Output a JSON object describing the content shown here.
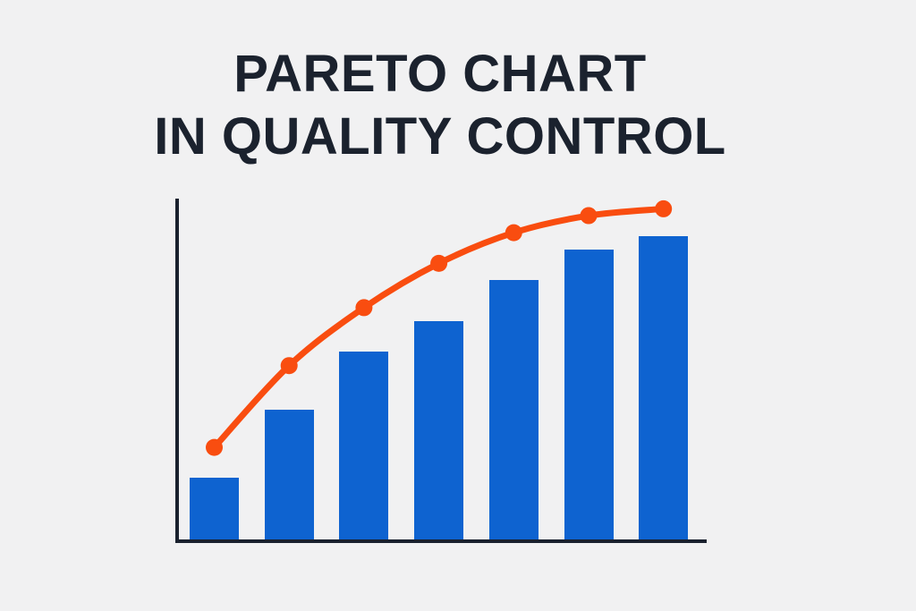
{
  "title": {
    "line1": "PARETO CHART",
    "line2": "IN QUALITY CONTROL"
  },
  "colors": {
    "background": "#f1f1f2",
    "title_text": "#1b222e",
    "axis": "#1a212e",
    "bar": "#0e63d0",
    "line": "#f94d10"
  },
  "chart_data": {
    "type": "bar",
    "subtype": "pareto-illustration",
    "title": "PARETO CHART IN QUALITY CONTROL",
    "xlabel": "",
    "ylabel": "",
    "ylim": [
      0,
      100
    ],
    "grid": false,
    "legend": "none",
    "axis_tick_labels_visible": false,
    "categories": [
      "",
      "",
      "",
      "",
      "",
      "",
      ""
    ],
    "series": [
      {
        "name": "frequency-bars",
        "type": "bar",
        "color": "#0e63d0",
        "values": [
          18,
          38,
          55,
          64,
          76,
          85,
          89
        ]
      },
      {
        "name": "cumulative-line",
        "type": "line",
        "color": "#f94d10",
        "marker": "circle",
        "values": [
          27,
          51,
          68,
          81,
          90,
          95,
          97
        ]
      }
    ]
  }
}
